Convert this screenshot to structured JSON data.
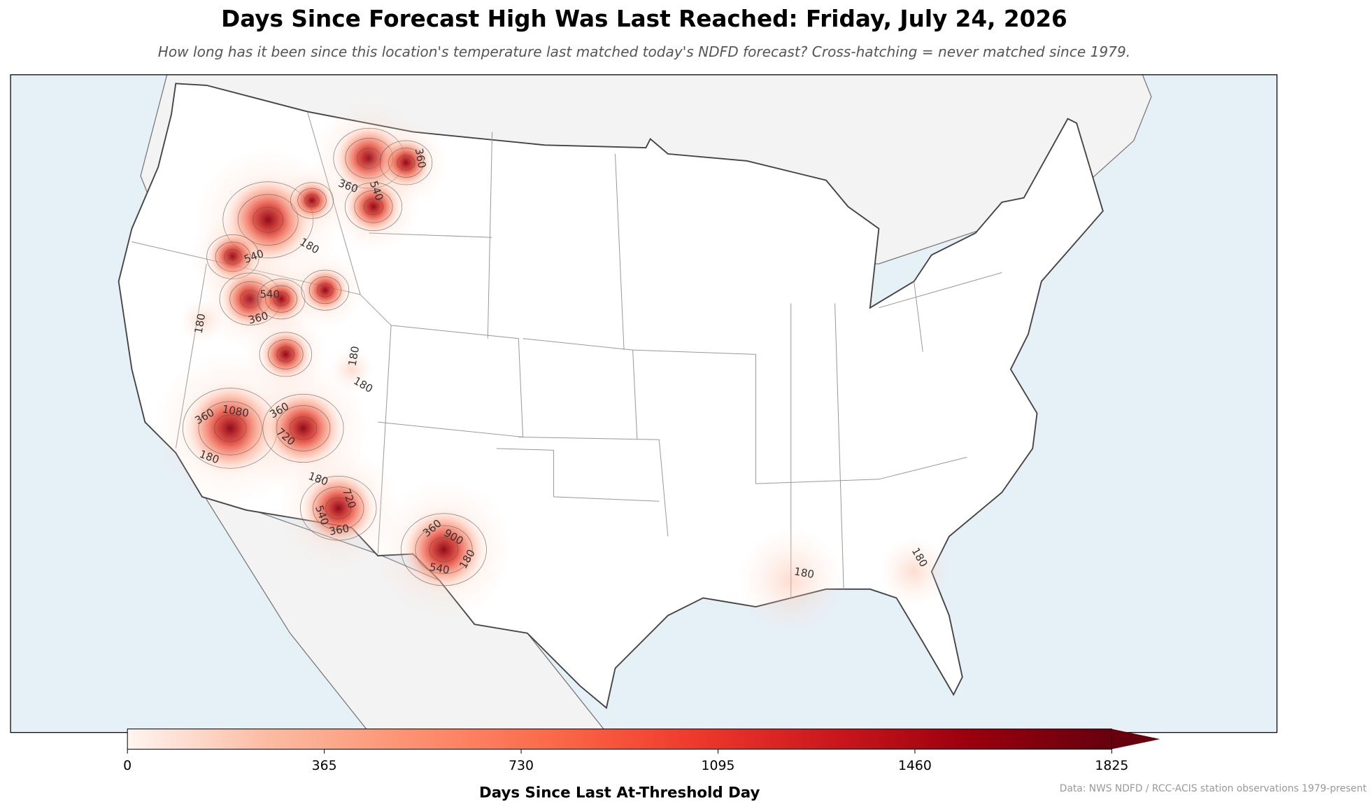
{
  "title": "Days Since Forecast High Was Last Reached: Friday, July 24, 2026",
  "subtitle": "How long has it been since this location's temperature last matched today's NDFD forecast? Cross-hatching = never matched since 1979.",
  "colorbar": {
    "label": "Days Since Last At-Threshold Day",
    "lim": [
      0,
      1825
    ],
    "ticks": [
      0,
      365,
      730,
      1095,
      1460,
      1825
    ],
    "extend": "max",
    "colors": [
      "#fff5f0",
      "#fcbba1",
      "#fc9272",
      "#fb6a4a",
      "#ef3b2c",
      "#cb181d",
      "#99000d",
      "#67000d"
    ]
  },
  "source": "Data: NWS NDFD / RCC-ACIS station observations 1979-present",
  "map": {
    "contour_labels": [
      180,
      180,
      180,
      180,
      360,
      540,
      540,
      360,
      360,
      1080,
      180,
      360,
      720,
      180,
      720,
      540,
      360,
      360,
      900,
      180,
      540,
      180,
      180,
      540,
      360
    ]
  }
}
